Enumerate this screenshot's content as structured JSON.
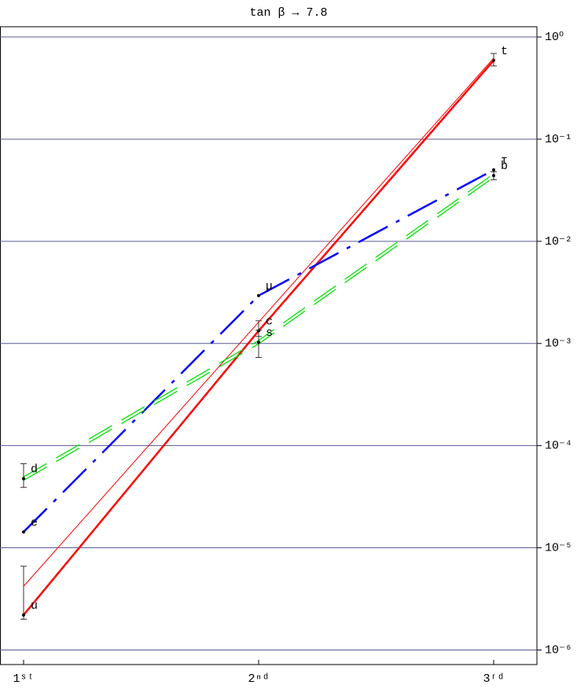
{
  "chart_data": {
    "type": "line",
    "title": "tan β → 7.8",
    "categories": [
      "1ˢᵗ",
      "2ⁿᵈ",
      "3ʳᵈ"
    ],
    "log_y": true,
    "grid": true,
    "grid_color": "#5a5a96",
    "ylim": [
      7.2e-07,
      1.26
    ],
    "yticks": [
      {
        "value": 1e-06,
        "label": "10⁻⁶"
      },
      {
        "value": 1e-05,
        "label": "10⁻⁵"
      },
      {
        "value": 0.0001,
        "label": "10⁻⁴"
      },
      {
        "value": 0.001,
        "label": "10⁻³"
      },
      {
        "value": 0.01,
        "label": "10⁻²"
      },
      {
        "value": 0.1,
        "label": "10⁻¹"
      },
      {
        "value": 1,
        "label": "10⁰"
      }
    ],
    "series": [
      {
        "color": "#ff0000",
        "width": 2.5,
        "style": "solid",
        "values": [
          2.2e-06,
          0.00133,
          0.59
        ],
        "labels": [
          "u",
          "c",
          "t"
        ],
        "error_low": [
          2e-06,
          0.00117,
          0.52
        ],
        "error_high": [
          6.6e-06,
          0.00167,
          0.69
        ]
      },
      {
        "color": "#ff0000",
        "width": 1,
        "style": "solid",
        "values": [
          4.2e-06,
          0.00162,
          0.62
        ]
      },
      {
        "color": "#0000ff",
        "width": 2.5,
        "style": "dashdot",
        "values": [
          1.43e-05,
          0.00294,
          0.05
        ],
        "labels": [
          "e",
          "μ",
          "τ"
        ]
      },
      {
        "color": "#00e000",
        "width": 1.3,
        "style": "double-dashed",
        "values": [
          4.75e-05,
          0.00103,
          0.044
        ],
        "labels": [
          "d",
          "s",
          "b"
        ],
        "error_low": [
          3.9e-05,
          0.00073,
          0.04
        ],
        "error_high": [
          6.65e-05,
          0.00135,
          0.048
        ]
      }
    ]
  }
}
